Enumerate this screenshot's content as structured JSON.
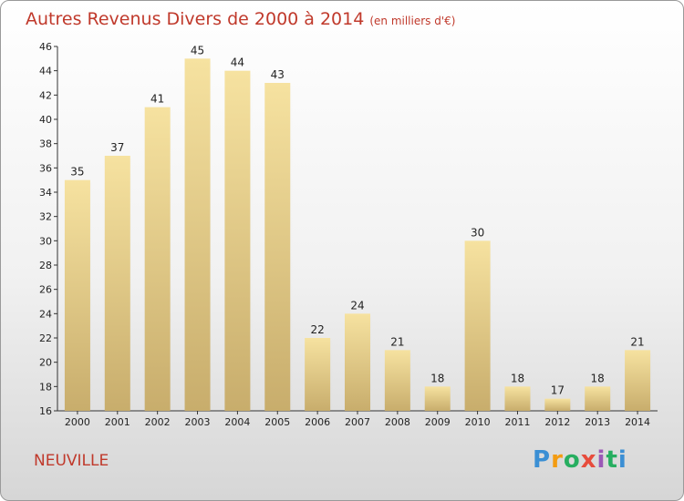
{
  "chart_data": {
    "type": "bar",
    "title": "Autres Revenus Divers de 2000 à 2014",
    "subtitle": "(en milliers d'€)",
    "categories": [
      "2000",
      "2001",
      "2002",
      "2003",
      "2004",
      "2005",
      "2006",
      "2007",
      "2008",
      "2009",
      "2010",
      "2011",
      "2012",
      "2013",
      "2014"
    ],
    "values": [
      35,
      37,
      41,
      45,
      44,
      43,
      22,
      24,
      21,
      18,
      30,
      18,
      17,
      18,
      21
    ],
    "ylim": [
      16,
      46
    ],
    "yticks": [
      16,
      18,
      20,
      22,
      24,
      26,
      28,
      30,
      32,
      34,
      36,
      38,
      40,
      42,
      44,
      46
    ],
    "grid": false,
    "colors": {
      "bar_light": "#f6e2a0",
      "bar_dark": "#c8ad6c",
      "title": "#c0392b"
    }
  },
  "footer": {
    "commune": "NEUVILLE",
    "logo": {
      "text": "Proxiti",
      "letter_colors": [
        "#3b8fd4",
        "#f39c12",
        "#27ae60",
        "#e74c3c",
        "#9b59b6",
        "#27ae60",
        "#3b8fd4"
      ]
    }
  }
}
